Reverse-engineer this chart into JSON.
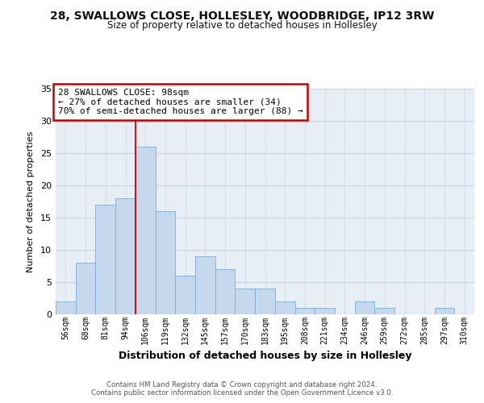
{
  "title": "28, SWALLOWS CLOSE, HOLLESLEY, WOODBRIDGE, IP12 3RW",
  "subtitle": "Size of property relative to detached houses in Hollesley",
  "xlabel": "Distribution of detached houses by size in Hollesley",
  "ylabel": "Number of detached properties",
  "bin_labels": [
    "56sqm",
    "68sqm",
    "81sqm",
    "94sqm",
    "106sqm",
    "119sqm",
    "132sqm",
    "145sqm",
    "157sqm",
    "170sqm",
    "183sqm",
    "195sqm",
    "208sqm",
    "221sqm",
    "234sqm",
    "246sqm",
    "259sqm",
    "272sqm",
    "285sqm",
    "297sqm",
    "310sqm"
  ],
  "bin_values": [
    2,
    8,
    17,
    18,
    26,
    16,
    6,
    9,
    7,
    4,
    4,
    2,
    1,
    1,
    0,
    2,
    1,
    0,
    0,
    1,
    0
  ],
  "bar_color": "#c5d8ee",
  "bar_edge_color": "#7aadd4",
  "ylim": [
    0,
    35
  ],
  "yticks": [
    0,
    5,
    10,
    15,
    20,
    25,
    30,
    35
  ],
  "annotation_title": "28 SWALLOWS CLOSE: 98sqm",
  "annotation_line1": "← 27% of detached houses are smaller (34)",
  "annotation_line2": "70% of semi-detached houses are larger (88) →",
  "annotation_box_color": "#ffffff",
  "annotation_box_edge": "#cc0000",
  "vline_color": "#cc0000",
  "vline_x": 3.5,
  "background_color": "#ffffff",
  "plot_bg_color": "#e8eef5",
  "grid_color": "#c8d4e0",
  "footer_line1": "Contains HM Land Registry data © Crown copyright and database right 2024.",
  "footer_line2": "Contains public sector information licensed under the Open Government Licence v3.0."
}
